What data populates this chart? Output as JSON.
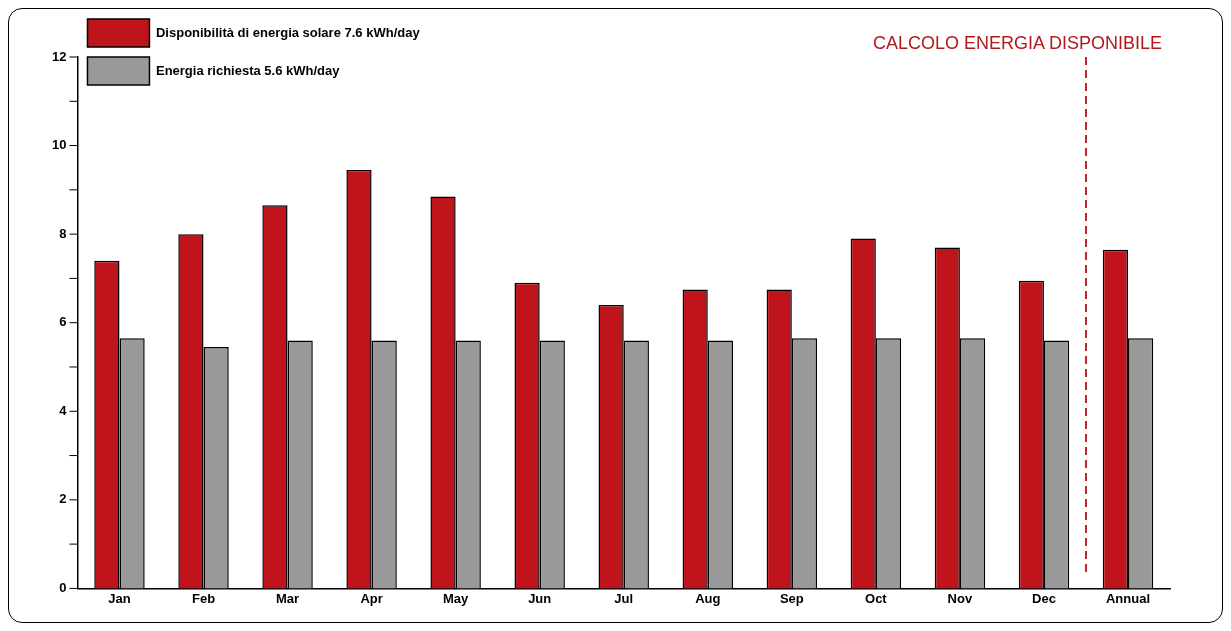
{
  "chart_data": {
    "type": "bar",
    "title": "CALCOLO ENERGIA DISPONIBILE",
    "categories": [
      "Jan",
      "Feb",
      "Mar",
      "Apr",
      "May",
      "Jun",
      "Jul",
      "Aug",
      "Sep",
      "Oct",
      "Nov",
      "Dec",
      "Annual"
    ],
    "series": [
      {
        "name": "Disponibilità di energia solare 7.6 kWh/day",
        "color": "#c0141c",
        "values": [
          7.4,
          8.0,
          8.65,
          9.45,
          8.85,
          6.9,
          6.4,
          6.75,
          6.75,
          7.9,
          7.7,
          6.95,
          7.65
        ]
      },
      {
        "name": "Energia richiesta 5.6 kWh/day",
        "color": "#999999",
        "values": [
          5.65,
          5.45,
          5.6,
          5.6,
          5.6,
          5.6,
          5.6,
          5.6,
          5.65,
          5.65,
          5.65,
          5.6,
          5.65
        ]
      }
    ],
    "ylim": [
      0,
      12
    ],
    "yticks": [
      0,
      {
        "value": 1,
        "label": null
      },
      2,
      {
        "value": 3,
        "label": null
      },
      4,
      {
        "value": 5,
        "label": null
      },
      6,
      {
        "value": 7,
        "label": null
      },
      8,
      {
        "value": 9,
        "label": null
      },
      10,
      {
        "value": 11,
        "label": null
      },
      12
    ],
    "grid": false,
    "legend": "top left"
  }
}
